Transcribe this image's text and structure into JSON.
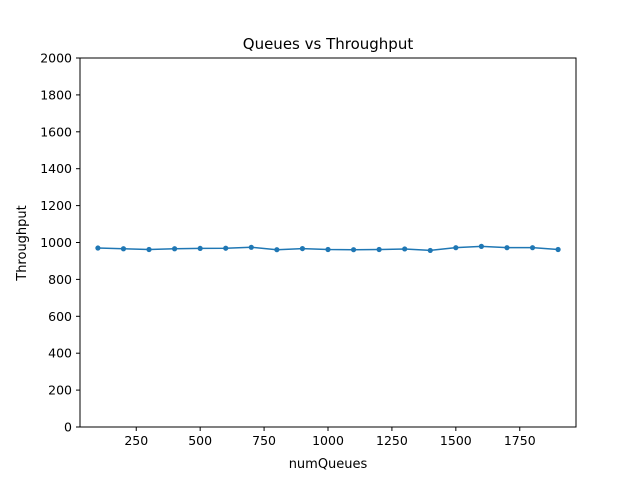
{
  "chart_data": {
    "type": "line",
    "title": "Queues vs Throughput",
    "xlabel": "numQueues",
    "ylabel": "Throughput",
    "xlim": [
      30,
      1970
    ],
    "ylim": [
      0,
      2000
    ],
    "xticks": [
      250,
      500,
      750,
      1000,
      1250,
      1500,
      1750
    ],
    "xtick_labels": [
      "250",
      "500",
      "750",
      "1000",
      "1250",
      "1500",
      "1750"
    ],
    "yticks": [
      0,
      200,
      400,
      600,
      800,
      1000,
      1200,
      1400,
      1600,
      1800,
      2000
    ],
    "ytick_labels": [
      "0",
      "200",
      "400",
      "600",
      "800",
      "1000",
      "1200",
      "1400",
      "1600",
      "1800",
      "2000"
    ],
    "grid": false,
    "series": [
      {
        "color": "#1f77b4",
        "marker": "circle",
        "x": [
          100,
          200,
          300,
          400,
          500,
          600,
          700,
          800,
          900,
          1000,
          1100,
          1200,
          1300,
          1400,
          1500,
          1600,
          1700,
          1800,
          1900
        ],
        "y": [
          970,
          966,
          962,
          966,
          968,
          969,
          974,
          961,
          967,
          962,
          961,
          962,
          965,
          957,
          972,
          979,
          972,
          972,
          962
        ]
      }
    ]
  }
}
